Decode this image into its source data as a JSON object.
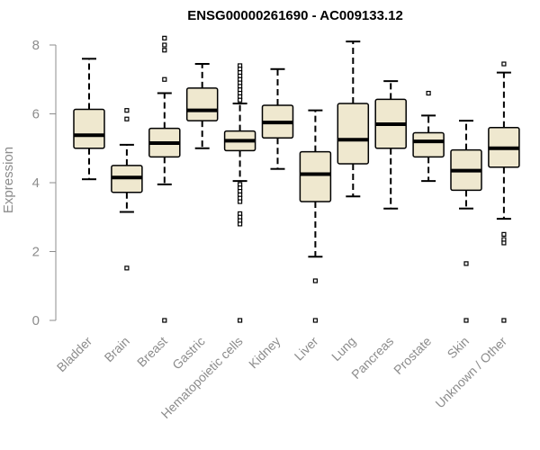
{
  "chart_data": {
    "type": "boxplot",
    "title": "ENSG00000261690 - AC009133.12",
    "ylabel": "Expression",
    "ylim": [
      0,
      8
    ],
    "yticks": [
      0,
      2,
      4,
      6,
      8
    ],
    "grid": false,
    "colors": {
      "box_fill": "#efe8cf",
      "box_stroke": "#000000",
      "axis": "#8c8c8c"
    },
    "categories": [
      "Bladder",
      "Brain",
      "Breast",
      "Gastric",
      "Hematopoietic cells",
      "Kidney",
      "Liver",
      "Lung",
      "Pancreas",
      "Prostate",
      "Skin",
      "Unknown / Other"
    ],
    "boxes": [
      {
        "category": "Bladder",
        "whisker_low": 4.1,
        "q1": 5.0,
        "median": 5.38,
        "q3": 6.13,
        "whisker_high": 7.6,
        "outliers": []
      },
      {
        "category": "Brain",
        "whisker_low": 3.15,
        "q1": 3.72,
        "median": 4.15,
        "q3": 4.5,
        "whisker_high": 5.1,
        "outliers": [
          6.1,
          5.85,
          1.52
        ]
      },
      {
        "category": "Breast",
        "whisker_low": 3.95,
        "q1": 4.75,
        "median": 5.15,
        "q3": 5.58,
        "whisker_high": 6.6,
        "outliers": [
          8.2,
          8.0,
          7.85,
          7.0,
          0.0
        ]
      },
      {
        "category": "Gastric",
        "whisker_low": 5.0,
        "q1": 5.8,
        "median": 6.1,
        "q3": 6.75,
        "whisker_high": 7.45,
        "outliers": []
      },
      {
        "category": "Hematopoietic cells",
        "whisker_low": 4.05,
        "q1": 4.93,
        "median": 5.22,
        "q3": 5.5,
        "whisker_high": 6.3,
        "outliers": [
          7.4,
          7.3,
          7.2,
          7.1,
          7.0,
          6.9,
          6.8,
          6.7,
          6.6,
          6.5,
          6.4,
          3.95,
          3.85,
          3.75,
          3.65,
          3.55,
          3.45,
          3.1,
          3.0,
          2.9,
          2.8,
          0.0
        ]
      },
      {
        "category": "Kidney",
        "whisker_low": 4.4,
        "q1": 5.3,
        "median": 5.75,
        "q3": 6.25,
        "whisker_high": 7.3,
        "outliers": []
      },
      {
        "category": "Liver",
        "whisker_low": 1.85,
        "q1": 3.45,
        "median": 4.25,
        "q3": 4.9,
        "whisker_high": 6.1,
        "outliers": [
          1.15,
          0.0
        ]
      },
      {
        "category": "Lung",
        "whisker_low": 3.6,
        "q1": 4.55,
        "median": 5.25,
        "q3": 6.3,
        "whisker_high": 8.1,
        "outliers": []
      },
      {
        "category": "Pancreas",
        "whisker_low": 3.25,
        "q1": 5.0,
        "median": 5.7,
        "q3": 6.42,
        "whisker_high": 6.95,
        "outliers": []
      },
      {
        "category": "Prostate",
        "whisker_low": 4.05,
        "q1": 4.75,
        "median": 5.2,
        "q3": 5.45,
        "whisker_high": 5.95,
        "outliers": [
          6.6
        ]
      },
      {
        "category": "Skin",
        "whisker_low": 3.25,
        "q1": 3.78,
        "median": 4.35,
        "q3": 4.95,
        "whisker_high": 5.8,
        "outliers": [
          1.65,
          0.0
        ]
      },
      {
        "category": "Unknown / Other",
        "whisker_low": 2.95,
        "q1": 4.45,
        "median": 5.0,
        "q3": 5.6,
        "whisker_high": 7.2,
        "outliers": [
          7.45,
          2.5,
          2.35,
          2.25,
          0.0
        ]
      }
    ]
  }
}
